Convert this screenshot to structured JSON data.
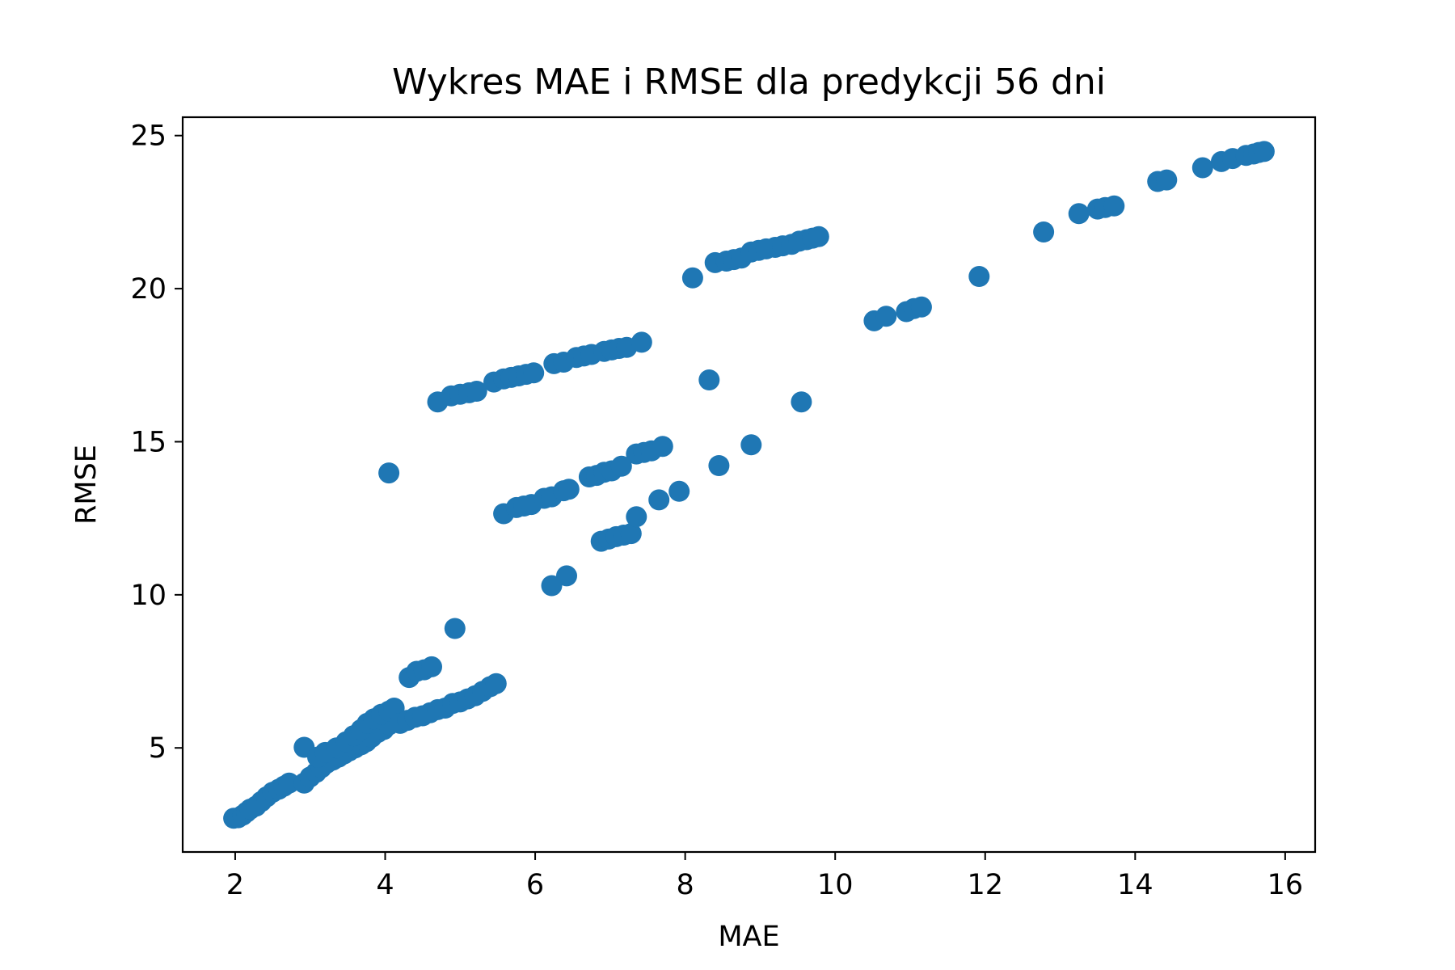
{
  "chart_data": {
    "type": "scatter",
    "title": "Wykres MAE i RMSE dla predykcji 56 dni",
    "xlabel": "MAE",
    "ylabel": "RMSE",
    "xlim": [
      1.3,
      16.4
    ],
    "ylim": [
      1.6,
      25.6
    ],
    "xticks": [
      2,
      4,
      6,
      8,
      10,
      12,
      14,
      16
    ],
    "xtick_labels": [
      "2",
      "4",
      "6",
      "8",
      "10",
      "12",
      "14",
      "16"
    ],
    "yticks": [
      5,
      10,
      15,
      20,
      25
    ],
    "ytick_labels": [
      "5",
      "10",
      "15",
      "20",
      "25"
    ],
    "grid": false,
    "legend": "none",
    "color": "#1f77b4",
    "points": [
      [
        1.98,
        2.7
      ],
      [
        2.04,
        2.72
      ],
      [
        2.1,
        2.8
      ],
      [
        2.15,
        2.9
      ],
      [
        2.2,
        3.0
      ],
      [
        2.28,
        3.1
      ],
      [
        2.35,
        3.25
      ],
      [
        2.42,
        3.4
      ],
      [
        2.5,
        3.55
      ],
      [
        2.58,
        3.65
      ],
      [
        2.65,
        3.75
      ],
      [
        2.72,
        3.85
      ],
      [
        2.92,
        3.85
      ],
      [
        3.0,
        4.05
      ],
      [
        3.08,
        4.2
      ],
      [
        3.15,
        4.35
      ],
      [
        3.22,
        4.5
      ],
      [
        3.3,
        4.6
      ],
      [
        3.38,
        4.7
      ],
      [
        3.45,
        4.8
      ],
      [
        3.52,
        4.9
      ],
      [
        3.6,
        5.0
      ],
      [
        3.68,
        5.1
      ],
      [
        3.75,
        5.2
      ],
      [
        3.82,
        5.35
      ],
      [
        3.9,
        5.5
      ],
      [
        3.98,
        5.6
      ],
      [
        4.05,
        5.75
      ],
      [
        4.12,
        5.85
      ],
      [
        2.92,
        5.02
      ],
      [
        3.1,
        4.7
      ],
      [
        3.2,
        4.85
      ],
      [
        3.35,
        5.0
      ],
      [
        3.48,
        5.2
      ],
      [
        3.58,
        5.4
      ],
      [
        3.68,
        5.6
      ],
      [
        3.76,
        5.8
      ],
      [
        3.85,
        5.95
      ],
      [
        3.95,
        6.1
      ],
      [
        4.05,
        6.2
      ],
      [
        4.12,
        6.3
      ],
      [
        4.2,
        5.8
      ],
      [
        4.3,
        5.9
      ],
      [
        4.4,
        6.0
      ],
      [
        4.5,
        6.05
      ],
      [
        4.6,
        6.15
      ],
      [
        4.7,
        6.25
      ],
      [
        4.8,
        6.3
      ],
      [
        4.9,
        6.45
      ],
      [
        5.0,
        6.5
      ],
      [
        5.1,
        6.6
      ],
      [
        5.2,
        6.7
      ],
      [
        5.3,
        6.85
      ],
      [
        5.4,
        7.0
      ],
      [
        5.48,
        7.1
      ],
      [
        4.32,
        7.3
      ],
      [
        4.42,
        7.5
      ],
      [
        4.52,
        7.55
      ],
      [
        4.62,
        7.65
      ],
      [
        4.93,
        8.9
      ],
      [
        4.05,
        13.98
      ],
      [
        4.7,
        16.3
      ],
      [
        4.88,
        16.5
      ],
      [
        5.0,
        16.55
      ],
      [
        5.12,
        16.6
      ],
      [
        5.22,
        16.65
      ],
      [
        5.45,
        16.95
      ],
      [
        5.58,
        17.05
      ],
      [
        5.68,
        17.1
      ],
      [
        5.78,
        17.15
      ],
      [
        5.88,
        17.2
      ],
      [
        5.98,
        17.25
      ],
      [
        6.25,
        17.55
      ],
      [
        6.38,
        17.6
      ],
      [
        6.55,
        17.75
      ],
      [
        6.65,
        17.8
      ],
      [
        6.75,
        17.85
      ],
      [
        6.92,
        17.95
      ],
      [
        7.02,
        18.0
      ],
      [
        7.12,
        18.05
      ],
      [
        7.22,
        18.08
      ],
      [
        7.42,
        18.25
      ],
      [
        5.58,
        12.65
      ],
      [
        5.75,
        12.85
      ],
      [
        5.85,
        12.9
      ],
      [
        5.95,
        12.95
      ],
      [
        6.12,
        13.15
      ],
      [
        6.22,
        13.2
      ],
      [
        6.38,
        13.4
      ],
      [
        6.45,
        13.45
      ],
      [
        6.72,
        13.85
      ],
      [
        6.82,
        13.9
      ],
      [
        6.92,
        14.0
      ],
      [
        7.02,
        14.05
      ],
      [
        7.15,
        14.2
      ],
      [
        7.35,
        14.6
      ],
      [
        7.45,
        14.65
      ],
      [
        7.55,
        14.7
      ],
      [
        7.7,
        14.85
      ],
      [
        6.22,
        10.3
      ],
      [
        6.42,
        10.62
      ],
      [
        6.88,
        11.75
      ],
      [
        6.98,
        11.82
      ],
      [
        7.08,
        11.9
      ],
      [
        7.18,
        11.95
      ],
      [
        7.28,
        12.0
      ],
      [
        7.35,
        12.55
      ],
      [
        7.65,
        13.1
      ],
      [
        7.92,
        13.38
      ],
      [
        8.32,
        17.02
      ],
      [
        8.45,
        14.22
      ],
      [
        8.88,
        14.9
      ],
      [
        9.55,
        16.3
      ],
      [
        8.1,
        20.35
      ],
      [
        8.4,
        20.85
      ],
      [
        8.55,
        20.9
      ],
      [
        8.65,
        20.95
      ],
      [
        8.75,
        21.0
      ],
      [
        8.88,
        21.2
      ],
      [
        8.98,
        21.25
      ],
      [
        9.08,
        21.3
      ],
      [
        9.2,
        21.35
      ],
      [
        9.3,
        21.4
      ],
      [
        9.42,
        21.45
      ],
      [
        9.52,
        21.55
      ],
      [
        9.62,
        21.6
      ],
      [
        9.7,
        21.65
      ],
      [
        9.78,
        21.7
      ],
      [
        10.52,
        18.95
      ],
      [
        10.68,
        19.1
      ],
      [
        10.95,
        19.25
      ],
      [
        11.05,
        19.35
      ],
      [
        11.15,
        19.4
      ],
      [
        11.92,
        20.4
      ],
      [
        12.78,
        21.85
      ],
      [
        13.25,
        22.45
      ],
      [
        13.5,
        22.6
      ],
      [
        13.6,
        22.65
      ],
      [
        13.72,
        22.7
      ],
      [
        14.3,
        23.5
      ],
      [
        14.42,
        23.55
      ],
      [
        14.9,
        23.95
      ],
      [
        15.15,
        24.15
      ],
      [
        15.3,
        24.25
      ],
      [
        15.48,
        24.35
      ],
      [
        15.58,
        24.4
      ],
      [
        15.65,
        24.45
      ],
      [
        15.72,
        24.48
      ]
    ]
  }
}
